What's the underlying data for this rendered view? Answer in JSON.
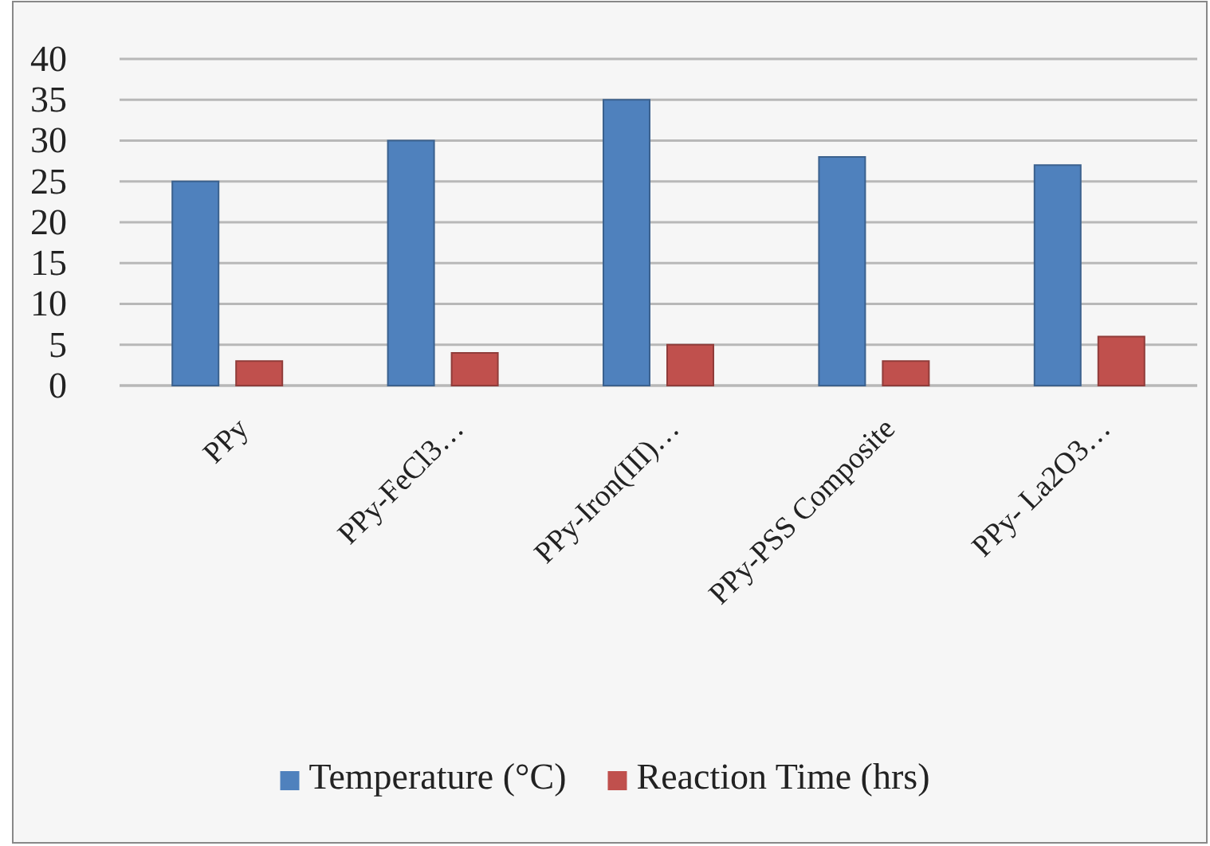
{
  "chart_data": {
    "type": "bar",
    "categories": [
      "PPy",
      "PPy-FeCl3…",
      "PPy-Iron(III)…",
      "PPy-PSS Composite",
      "PPy- La2O3…"
    ],
    "series": [
      {
        "name": "Temperature  (°C)",
        "color": "#4f81bd",
        "values": [
          25,
          30,
          35,
          28,
          27
        ]
      },
      {
        "name": "Reaction Time (hrs)",
        "color": "#c0504d",
        "values": [
          3,
          4,
          5,
          3,
          6
        ]
      }
    ],
    "ylim": [
      0,
      40
    ],
    "yticks": [
      0,
      5,
      10,
      15,
      20,
      25,
      30,
      35,
      40
    ],
    "grid": "y",
    "legend": "bottom"
  }
}
